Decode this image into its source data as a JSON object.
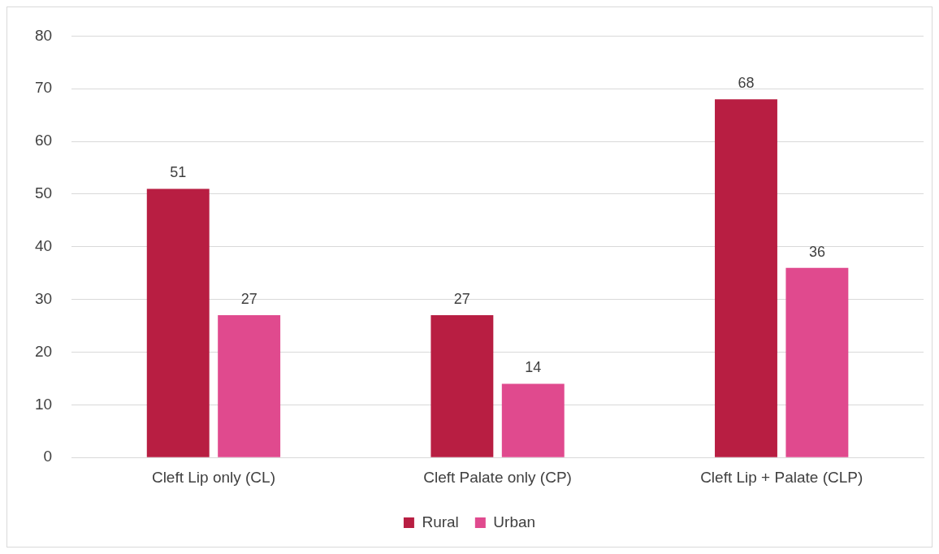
{
  "chart_data": {
    "type": "bar",
    "categories": [
      "Cleft Lip only (CL)",
      "Cleft Palate only (CP)",
      "Cleft Lip + Palate (CLP)"
    ],
    "series": [
      {
        "name": "Rural",
        "color": "#b81e42",
        "values": [
          51,
          27,
          68
        ]
      },
      {
        "name": "Urban",
        "color": "#e04a8e",
        "values": [
          27,
          14,
          36
        ]
      }
    ],
    "ylim": [
      0,
      80
    ],
    "yticks": [
      0,
      10,
      20,
      30,
      40,
      50,
      60,
      70,
      80
    ],
    "grid": "y",
    "legend": "bottom",
    "data_labels": true
  }
}
